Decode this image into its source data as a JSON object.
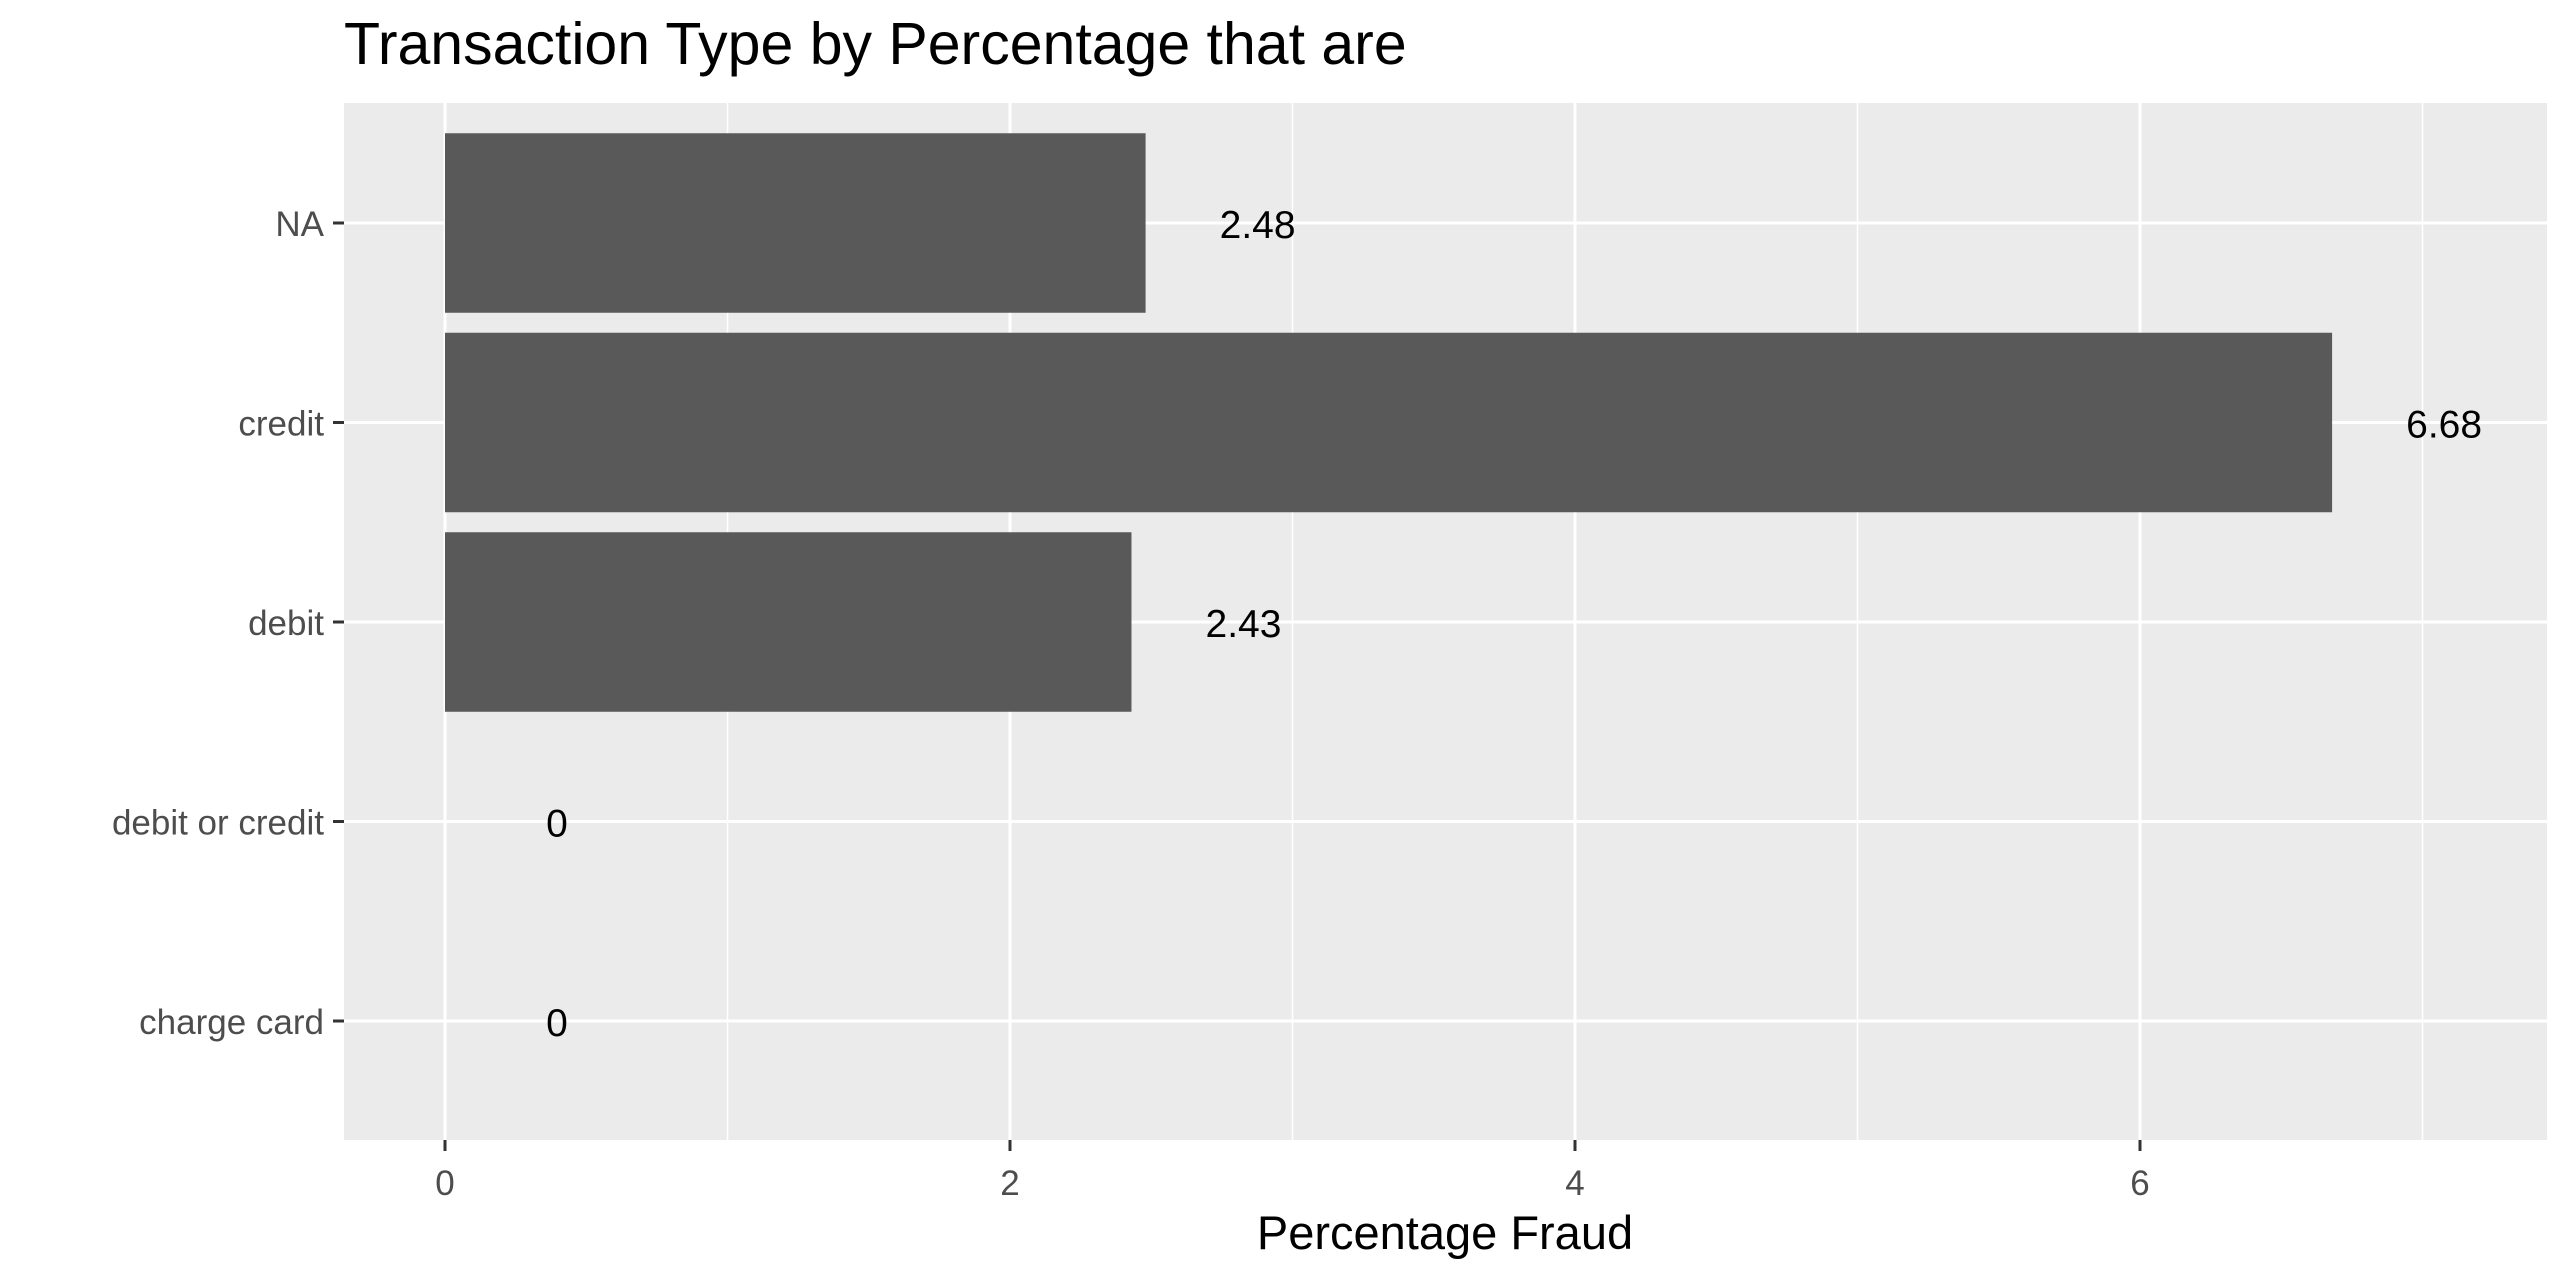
{
  "chart_data": {
    "type": "bar",
    "orientation": "horizontal",
    "title": "Transaction Type by Percentage that are",
    "xlabel": "Percentage Fraud",
    "ylabel": "",
    "categories": [
      "NA",
      "credit",
      "debit",
      "debit or credit",
      "charge card"
    ],
    "values": [
      2.48,
      6.68,
      2.43,
      0,
      0
    ],
    "data_labels": [
      "2.48",
      "6.68",
      "2.43",
      "0",
      "0"
    ],
    "xlim": [
      -0.34,
      7.35
    ],
    "x_ticks": [
      0,
      2,
      4,
      6
    ],
    "x_tick_labels": [
      "0",
      "2",
      "4",
      "6"
    ],
    "grid": true,
    "colors": {
      "bar": "#595959",
      "panel": "#ebebeb",
      "grid": "#ffffff",
      "tick_label": "#4d4d4d",
      "text": "#000000"
    }
  }
}
